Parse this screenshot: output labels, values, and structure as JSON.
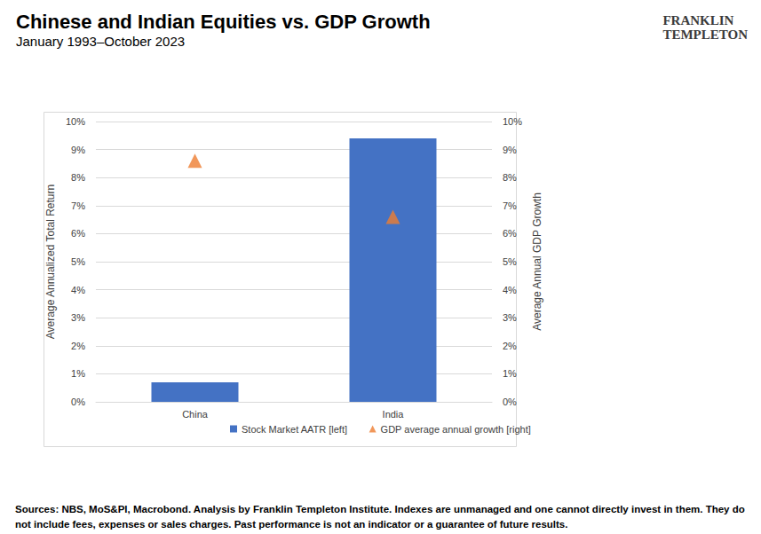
{
  "chart_data": {
    "type": "bar",
    "title": "Chinese and Indian Equities vs. GDP Growth",
    "subtitle": "January 1993–October 2023",
    "logo": [
      "FRANKLIN",
      "TEMPLETON"
    ],
    "categories": [
      "China",
      "India"
    ],
    "series": [
      {
        "name": "Stock Market AATR [left]",
        "type": "bar",
        "color": "#4472c4",
        "values": [
          0.7,
          9.4
        ]
      },
      {
        "name": "GDP average annual growth [right]",
        "type": "scatter",
        "marker": "triangle",
        "color": "#ed7d31",
        "axis": "y2",
        "values": [
          8.6,
          6.6
        ]
      }
    ],
    "ylabel": "Average Annualized Total Return",
    "y2label": "Average Annual GDP Growth",
    "ylim": [
      0,
      10
    ],
    "yticks": [
      {
        "value": 0,
        "label": "0%"
      },
      {
        "value": 1,
        "label": "1%"
      },
      {
        "value": 2,
        "label": "2%"
      },
      {
        "value": 3,
        "label": "3%"
      },
      {
        "value": 4,
        "label": "4%"
      },
      {
        "value": 5,
        "label": "5%"
      },
      {
        "value": 6,
        "label": "6%"
      },
      {
        "value": 7,
        "label": "7%"
      },
      {
        "value": 8,
        "label": "8%"
      },
      {
        "value": 9,
        "label": "9%"
      },
      {
        "value": 10,
        "label": "10%"
      }
    ],
    "y2lim": [
      0,
      10
    ],
    "y2ticks": [
      {
        "value": 0,
        "label": "0%"
      },
      {
        "value": 1,
        "label": "1%"
      },
      {
        "value": 2,
        "label": "2%"
      },
      {
        "value": 3,
        "label": "3%"
      },
      {
        "value": 4,
        "label": "4%"
      },
      {
        "value": 5,
        "label": "5%"
      },
      {
        "value": 6,
        "label": "6%"
      },
      {
        "value": 7,
        "label": "7%"
      },
      {
        "value": 8,
        "label": "8%"
      },
      {
        "value": 9,
        "label": "9%"
      },
      {
        "value": 10,
        "label": "10%"
      }
    ],
    "grid": true,
    "legend": "bottom",
    "source": "Sources: NBS, MoS&PI, Macrobond. Analysis by Franklin Templeton Institute. Indexes are unmanaged and one cannot directly invest in them. They do not include fees, expenses or sales charges.",
    "disclaimer": "Past performance is not an indicator or a guarantee of future results."
  }
}
